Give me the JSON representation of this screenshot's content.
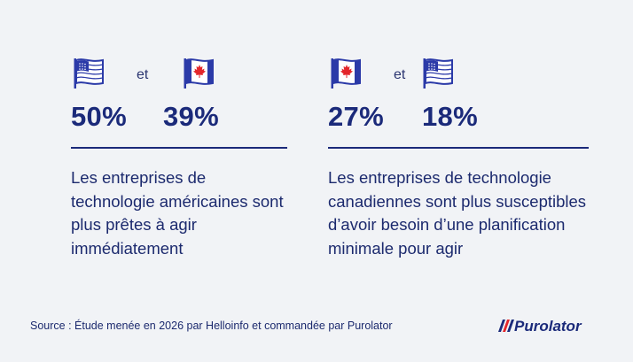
{
  "left": {
    "flags": [
      "us-flag-icon",
      "canada-flag-icon"
    ],
    "connector": "et",
    "value_1": "50%",
    "value_2": "39%",
    "description": "Les entreprises de technologie américaines sont plus prêtes à agir immédiatement"
  },
  "right": {
    "flags": [
      "canada-flag-icon",
      "us-flag-icon"
    ],
    "connector": "et",
    "value_1": "27%",
    "value_2": "18%",
    "description": "Les entreprises de technologie canadiennes sont plus susceptibles d’avoir besoin d’une planification minimale pour agir"
  },
  "footer": {
    "source": "Source : Étude menée en 2026 par Helloinfo et commandée par Purolator",
    "logo_text": "Purolator"
  },
  "colors": {
    "navy": "#1b2a7a",
    "background": "#f1f3f6",
    "red": "#e3262b",
    "flag_blue": "#2b3aa8"
  }
}
